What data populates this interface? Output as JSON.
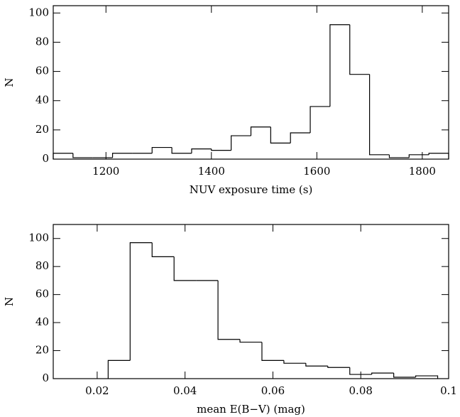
{
  "chart_data": [
    {
      "type": "histogram",
      "xlabel": "NUV exposure time (s)",
      "ylabel": "N",
      "bins": [
        1100,
        1137.5,
        1175,
        1212.5,
        1250,
        1287.5,
        1325,
        1362.5,
        1400,
        1437.5,
        1475,
        1512.5,
        1550,
        1587.5,
        1625,
        1662.5,
        1700,
        1737.5,
        1775,
        1812.5,
        1850
      ],
      "values": [
        4,
        1,
        1,
        4,
        4,
        8,
        4,
        7,
        6,
        16,
        22,
        11,
        18,
        36,
        92,
        58,
        3,
        1,
        3,
        4
      ],
      "color": "#000000",
      "xlim": [
        1100,
        1850
      ],
      "xticks": [
        1200,
        1400,
        1600,
        1800
      ],
      "ylim": [
        0,
        105
      ],
      "yticks": [
        0,
        20,
        40,
        60,
        80,
        100
      ]
    },
    {
      "type": "histogram",
      "xlabel": "mean E(B−V) (mag)",
      "ylabel": "N",
      "bins": [
        0.0225,
        0.0275,
        0.0325,
        0.0375,
        0.0425,
        0.0475,
        0.0525,
        0.0575,
        0.0625,
        0.0675,
        0.0725,
        0.0775,
        0.0825,
        0.0875,
        0.0925,
        0.0975
      ],
      "values": [
        13,
        97,
        87,
        70,
        70,
        28,
        26,
        13,
        11,
        9,
        8,
        3,
        4,
        1,
        2
      ],
      "color": "#000000",
      "xlim": [
        0.01,
        0.1
      ],
      "xticks": [
        0.02,
        0.04,
        0.06,
        0.08,
        0.1
      ],
      "ylim": [
        0,
        110
      ],
      "yticks": [
        0,
        20,
        40,
        60,
        80,
        100
      ]
    }
  ]
}
